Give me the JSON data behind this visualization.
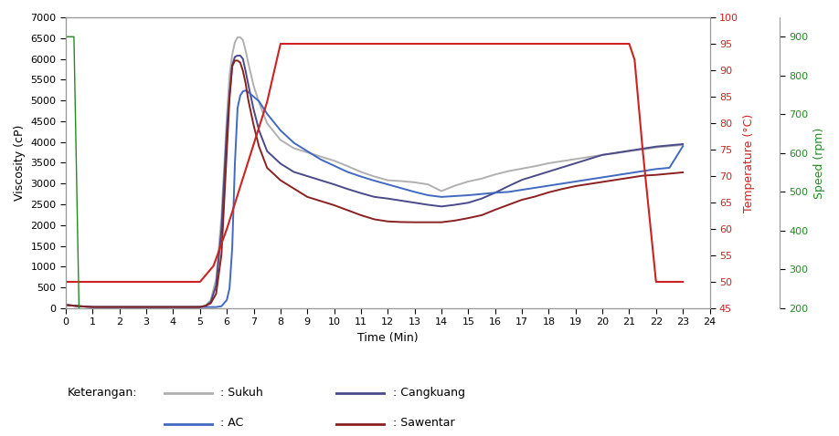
{
  "xlabel": "Time (Min)",
  "ylabel_left": "Viscosity (cP)",
  "ylabel_right1": "Temperature (°C)",
  "ylabel_right2": "Speed (rpm)",
  "xlim": [
    0,
    24
  ],
  "ylim_left": [
    0,
    7000
  ],
  "ylim_temp": [
    45,
    100
  ],
  "ylim_speed": [
    200,
    950
  ],
  "xticks": [
    0,
    1,
    2,
    3,
    4,
    5,
    6,
    7,
    8,
    9,
    10,
    11,
    12,
    13,
    14,
    15,
    16,
    17,
    18,
    19,
    20,
    21,
    22,
    23,
    24
  ],
  "yticks_left": [
    0,
    500,
    1000,
    1500,
    2000,
    2500,
    3000,
    3500,
    4000,
    4500,
    5000,
    5500,
    6000,
    6500,
    7000
  ],
  "yticks_temp": [
    45,
    50,
    55,
    60,
    65,
    70,
    75,
    80,
    85,
    90,
    95,
    100
  ],
  "yticks_speed": [
    200,
    300,
    400,
    500,
    600,
    700,
    800,
    900
  ],
  "colors": {
    "sukuh": "#b0b0b0",
    "cangkuang": "#4a4a8a",
    "ac": "#4169c0",
    "sawentar": "#8b2020",
    "temperature": "#cc2222",
    "speed": "#228b22"
  },
  "time": [
    0,
    0.5,
    1.0,
    1.5,
    2.0,
    2.5,
    3.0,
    3.5,
    4.0,
    4.5,
    5.0,
    5.2,
    5.4,
    5.6,
    5.8,
    6.0,
    6.1,
    6.2,
    6.3,
    6.4,
    6.5,
    6.6,
    6.7,
    6.8,
    7.0,
    7.2,
    7.5,
    8.0,
    8.5,
    9.0,
    9.5,
    10.0,
    10.5,
    11.0,
    11.5,
    12.0,
    12.5,
    13.0,
    13.5,
    14.0,
    14.5,
    15.0,
    15.5,
    16.0,
    16.5,
    17.0,
    17.5,
    18.0,
    18.5,
    19.0,
    19.5,
    20.0,
    20.5,
    21.0,
    21.5,
    22.0,
    22.5,
    23.0
  ],
  "sukuh": [
    80,
    50,
    30,
    30,
    30,
    30,
    30,
    30,
    30,
    30,
    40,
    60,
    200,
    700,
    2200,
    4600,
    5600,
    6100,
    6400,
    6520,
    6520,
    6450,
    6200,
    5900,
    5350,
    4950,
    4450,
    4050,
    3850,
    3750,
    3650,
    3550,
    3420,
    3280,
    3170,
    3080,
    3060,
    3030,
    2980,
    2820,
    2950,
    3050,
    3120,
    3220,
    3300,
    3360,
    3420,
    3490,
    3540,
    3590,
    3640,
    3690,
    3730,
    3780,
    3820,
    3870,
    3900,
    3930
  ],
  "cangkuang": [
    80,
    50,
    30,
    30,
    30,
    30,
    30,
    30,
    30,
    30,
    30,
    50,
    150,
    550,
    1900,
    4300,
    5150,
    5850,
    6050,
    6080,
    6080,
    6000,
    5700,
    5380,
    4780,
    4280,
    3780,
    3480,
    3280,
    3180,
    3080,
    2980,
    2870,
    2770,
    2680,
    2640,
    2590,
    2540,
    2490,
    2450,
    2490,
    2540,
    2640,
    2780,
    2940,
    3090,
    3190,
    3290,
    3390,
    3490,
    3590,
    3690,
    3740,
    3790,
    3840,
    3890,
    3920,
    3950
  ],
  "ac": [
    80,
    50,
    30,
    30,
    30,
    30,
    30,
    30,
    30,
    30,
    30,
    30,
    30,
    30,
    50,
    200,
    480,
    1450,
    3480,
    4820,
    5120,
    5220,
    5240,
    5200,
    5090,
    4980,
    4680,
    4280,
    3980,
    3780,
    3580,
    3430,
    3280,
    3170,
    3070,
    2980,
    2890,
    2800,
    2720,
    2680,
    2700,
    2720,
    2750,
    2780,
    2800,
    2850,
    2900,
    2950,
    3000,
    3050,
    3100,
    3150,
    3200,
    3250,
    3300,
    3350,
    3380,
    3900
  ],
  "sawentar": [
    80,
    50,
    30,
    30,
    30,
    30,
    30,
    30,
    30,
    30,
    30,
    60,
    120,
    350,
    1300,
    3800,
    5050,
    5820,
    5960,
    5960,
    5910,
    5710,
    5410,
    5010,
    4400,
    3890,
    3380,
    3080,
    2880,
    2680,
    2580,
    2480,
    2360,
    2240,
    2140,
    2090,
    2075,
    2070,
    2070,
    2070,
    2110,
    2170,
    2240,
    2370,
    2490,
    2610,
    2690,
    2790,
    2870,
    2940,
    2990,
    3040,
    3090,
    3140,
    3190,
    3210,
    3240,
    3270
  ],
  "temperature_time": [
    0,
    0.5,
    1.0,
    2.0,
    3.0,
    4.0,
    5.0,
    5.5,
    6.0,
    6.5,
    7.0,
    7.5,
    8.0,
    8.5,
    9.0,
    10.0,
    11.0,
    12.0,
    13.0,
    14.0,
    15.0,
    16.0,
    17.0,
    18.0,
    19.0,
    20.0,
    21.0,
    21.2,
    21.5,
    22.0,
    22.5,
    23.0
  ],
  "temperature": [
    50,
    50,
    50,
    50,
    50,
    50,
    50,
    53,
    60,
    68,
    76,
    84,
    95,
    95,
    95,
    95,
    95,
    95,
    95,
    95,
    95,
    95,
    95,
    95,
    95,
    95,
    95,
    92,
    75,
    50,
    50,
    50
  ],
  "speed_time": [
    0,
    0.3,
    0.5,
    23.0
  ],
  "speed": [
    900,
    900,
    160,
    160
  ],
  "legend": {
    "sukuh_label": "Sukuh",
    "cangkuang_label": "Cangkuang",
    "ac_label": "AC",
    "sawentar_label": "Sawentar"
  },
  "bg_color": "#ffffff"
}
